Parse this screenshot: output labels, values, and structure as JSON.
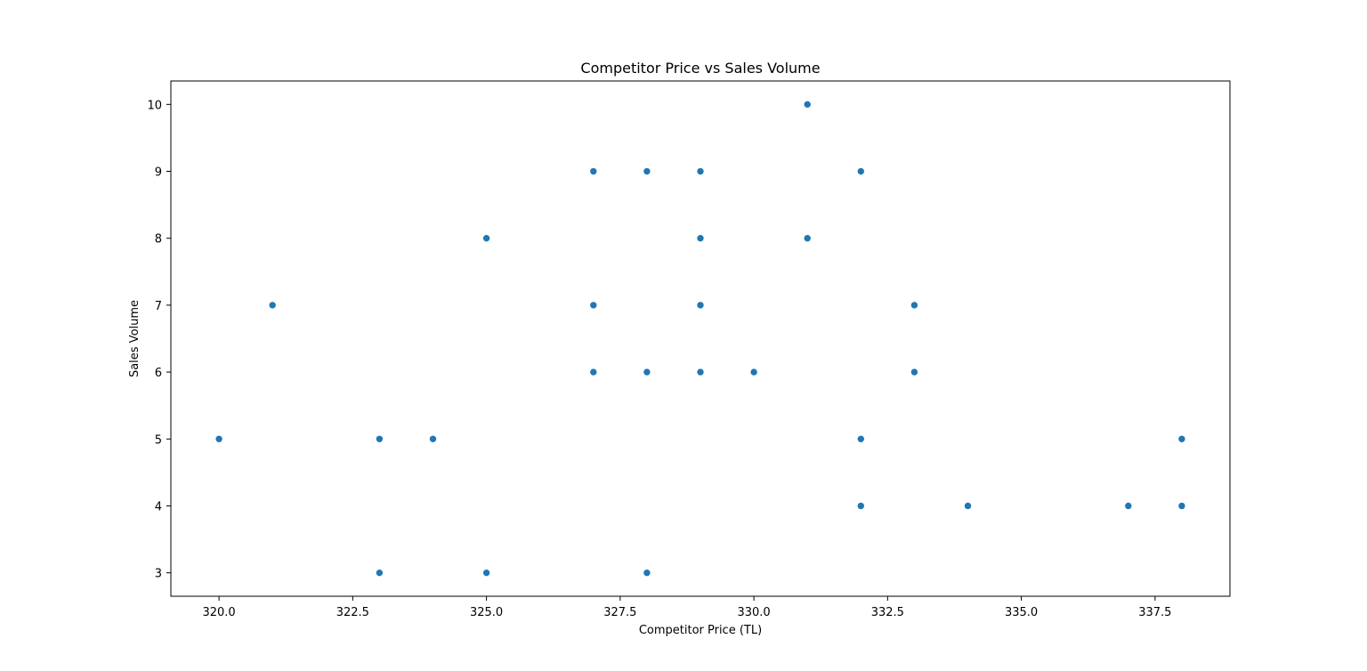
{
  "chart_data": {
    "type": "scatter",
    "title": "Competitor Price vs Sales Volume",
    "xlabel": "Competitor Price (TL)",
    "ylabel": "Sales Volume",
    "xlim": [
      319.1,
      338.9
    ],
    "ylim": [
      2.65,
      10.35
    ],
    "xticks": [
      320.0,
      322.5,
      325.0,
      327.5,
      330.0,
      332.5,
      335.0,
      337.5
    ],
    "xtick_labels": [
      "320.0",
      "322.5",
      "325.0",
      "327.5",
      "330.0",
      "332.5",
      "335.0",
      "337.5"
    ],
    "yticks": [
      3,
      4,
      5,
      6,
      7,
      8,
      9,
      10
    ],
    "ytick_labels": [
      "3",
      "4",
      "5",
      "6",
      "7",
      "8",
      "9",
      "10"
    ],
    "grid": false,
    "marker_color": "#1f77b4",
    "points": [
      {
        "x": 320,
        "y": 5
      },
      {
        "x": 321,
        "y": 7
      },
      {
        "x": 323,
        "y": 5
      },
      {
        "x": 323,
        "y": 3
      },
      {
        "x": 324,
        "y": 5
      },
      {
        "x": 325,
        "y": 8
      },
      {
        "x": 325,
        "y": 3
      },
      {
        "x": 327,
        "y": 9
      },
      {
        "x": 327,
        "y": 7
      },
      {
        "x": 327,
        "y": 6
      },
      {
        "x": 328,
        "y": 9
      },
      {
        "x": 328,
        "y": 6
      },
      {
        "x": 328,
        "y": 3
      },
      {
        "x": 329,
        "y": 9
      },
      {
        "x": 329,
        "y": 8
      },
      {
        "x": 329,
        "y": 7
      },
      {
        "x": 329,
        "y": 6
      },
      {
        "x": 330,
        "y": 6
      },
      {
        "x": 331,
        "y": 10
      },
      {
        "x": 331,
        "y": 8
      },
      {
        "x": 332,
        "y": 9
      },
      {
        "x": 332,
        "y": 5
      },
      {
        "x": 332,
        "y": 4
      },
      {
        "x": 333,
        "y": 7
      },
      {
        "x": 333,
        "y": 6
      },
      {
        "x": 334,
        "y": 4
      },
      {
        "x": 337,
        "y": 4
      },
      {
        "x": 338,
        "y": 5
      },
      {
        "x": 338,
        "y": 4
      }
    ]
  }
}
